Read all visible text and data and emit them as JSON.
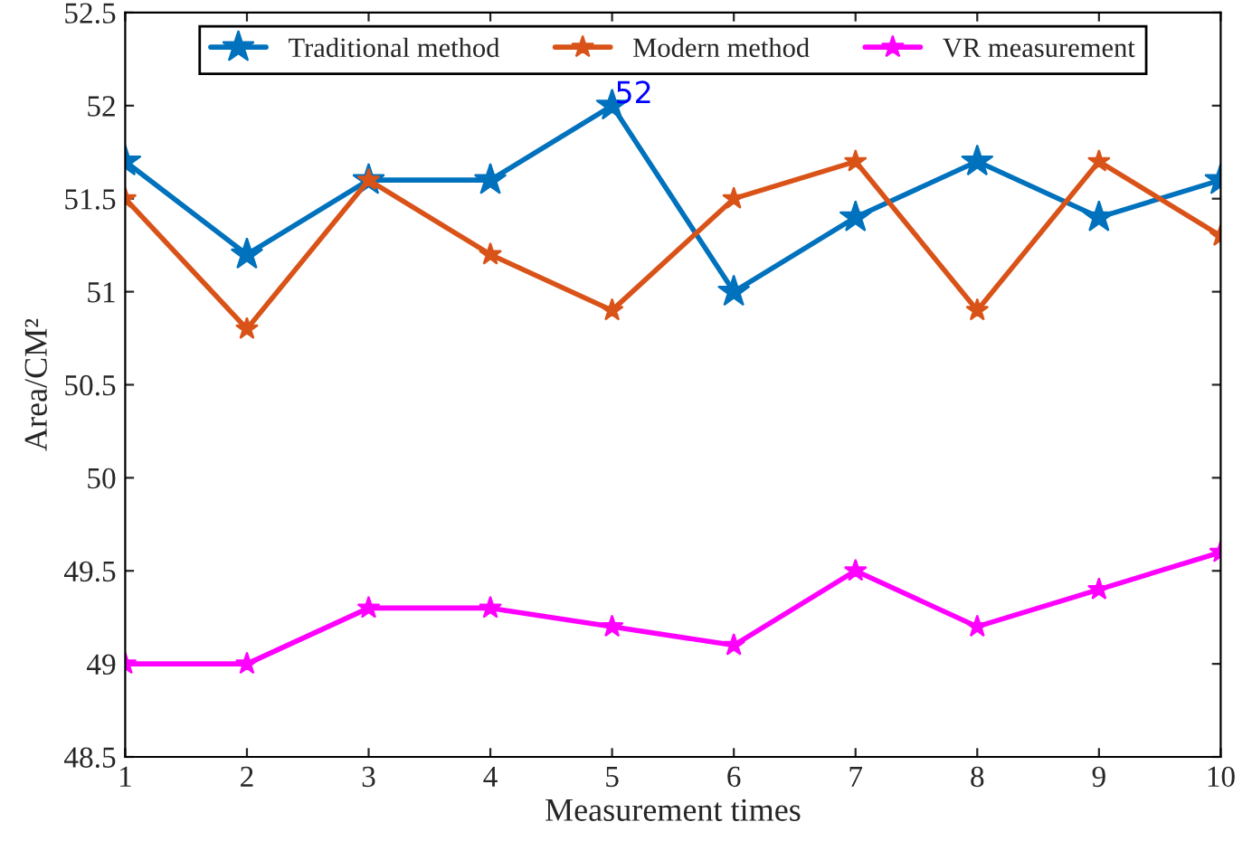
{
  "chart_data": {
    "type": "line",
    "xlabel": "Measurement times",
    "ylabel": "Area/CM²",
    "x": [
      1,
      2,
      3,
      4,
      5,
      6,
      7,
      8,
      9,
      10
    ],
    "series": [
      {
        "name": "Traditional method",
        "color": "#0072bd",
        "values": [
          51.7,
          51.2,
          51.6,
          51.6,
          52.0,
          51.0,
          51.4,
          51.7,
          51.4,
          51.6
        ]
      },
      {
        "name": "Modern method",
        "color": "#d95319",
        "values": [
          51.5,
          50.8,
          51.6,
          51.2,
          50.9,
          51.5,
          51.7,
          50.9,
          51.7,
          51.3
        ]
      },
      {
        "name": "VR measurement",
        "color": "#ff00ff",
        "values": [
          49.0,
          49.0,
          49.3,
          49.3,
          49.2,
          49.1,
          49.5,
          49.2,
          49.4,
          49.6
        ]
      }
    ],
    "annotations": [
      {
        "text": "52",
        "x": 5,
        "y": 52
      }
    ],
    "xlim": [
      1,
      10
    ],
    "xticks": [
      1,
      2,
      3,
      4,
      5,
      6,
      7,
      8,
      9,
      10
    ],
    "ylim": [
      48.5,
      52.5
    ],
    "yticks": [
      48.5,
      49,
      49.5,
      50,
      50.5,
      51,
      51.5,
      52,
      52.5
    ],
    "grid": false,
    "legend": "top",
    "marker": "star",
    "line_style": "solid"
  }
}
